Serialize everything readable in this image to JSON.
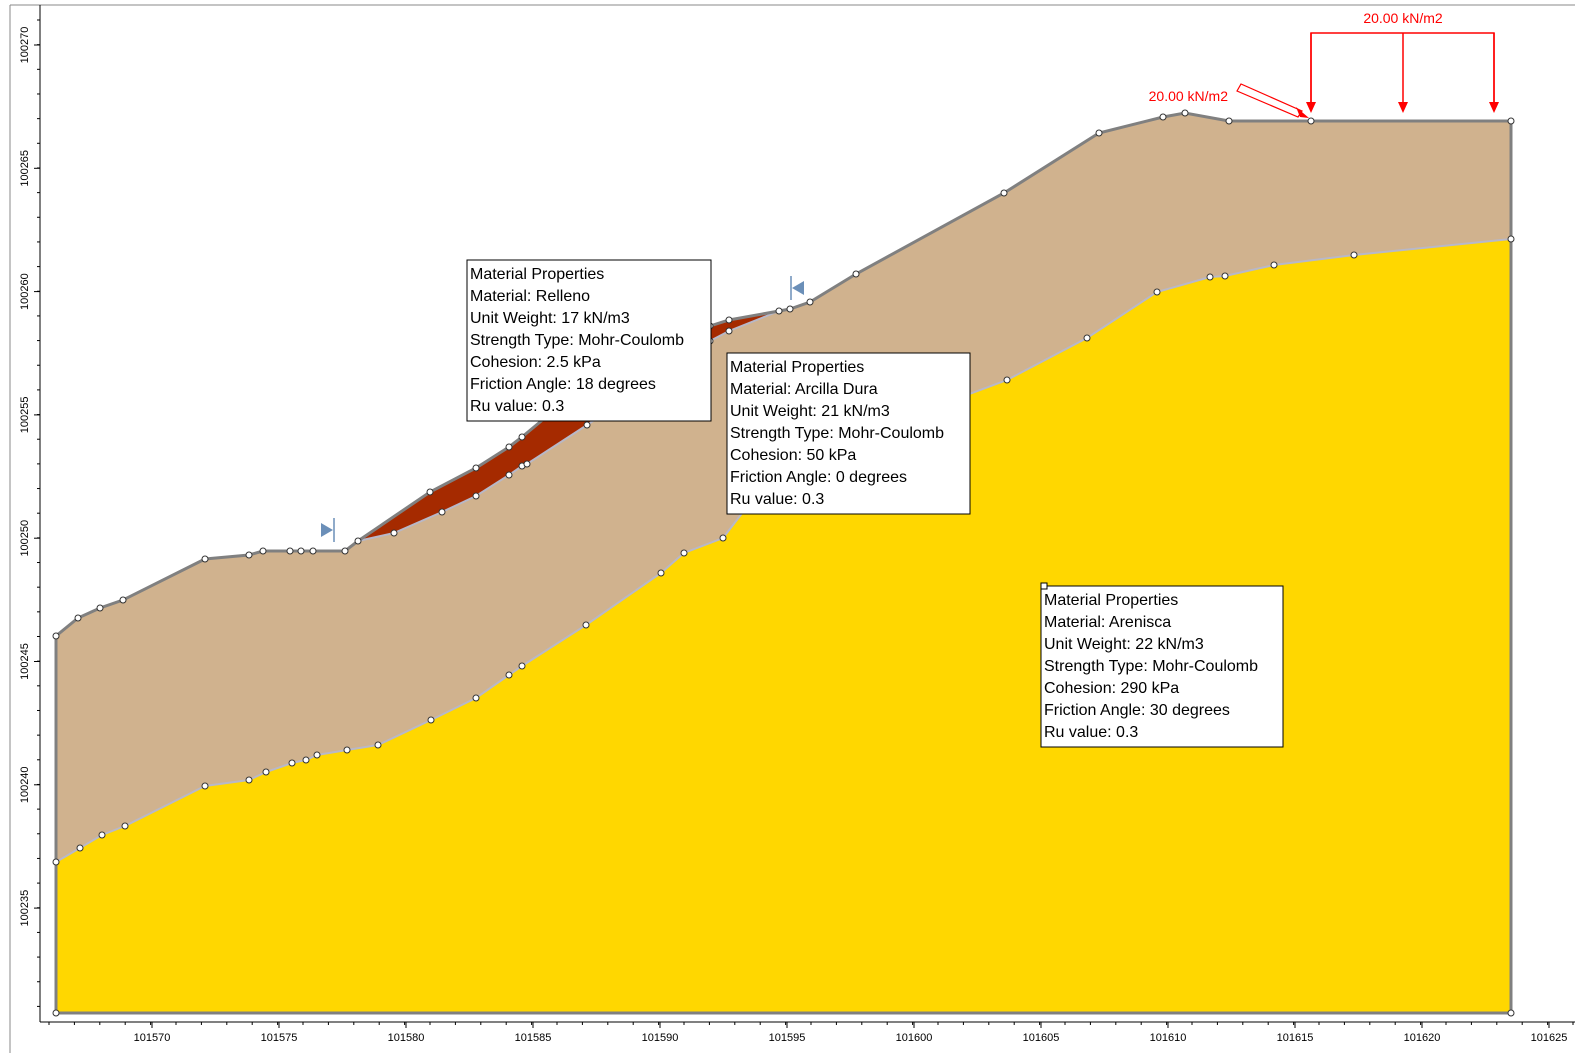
{
  "x_axis": {
    "labels": [
      "101570",
      "101575",
      "101580",
      "101585",
      "101590",
      "101595",
      "101600",
      "101605",
      "101610",
      "101615",
      "101620",
      "101625"
    ]
  },
  "y_axis": {
    "labels": [
      "100270",
      "100265",
      "100260",
      "100255",
      "100250",
      "100245",
      "100240",
      "100235"
    ]
  },
  "loads": [
    {
      "label": "20.00 kN/m2"
    },
    {
      "label": "20.00 kN/m2"
    }
  ],
  "materials": [
    {
      "heading": "Material Properties",
      "lines": [
        "Material: Relleno",
        "Unit Weight: 17 kN/m3",
        "Strength Type: Mohr-Coulomb",
        "Cohesion: 2.5 kPa",
        "Friction Angle: 18 degrees",
        "Ru value: 0.3"
      ]
    },
    {
      "heading": "Material Properties",
      "lines": [
        "Material: Arcilla Dura",
        "Unit Weight: 21 kN/m3",
        "Strength Type: Mohr-Coulomb",
        "Cohesion: 50 kPa",
        "Friction Angle: 0 degrees",
        "Ru value: 0.3"
      ]
    },
    {
      "heading": "Material Properties",
      "lines": [
        "Material: Arenisca",
        "Unit Weight: 22 kN/m3",
        "Strength Type: Mohr-Coulomb",
        "Cohesion: 290 kPa",
        "Friction Angle: 30 degrees",
        "Ru value: 0.3"
      ]
    }
  ]
}
